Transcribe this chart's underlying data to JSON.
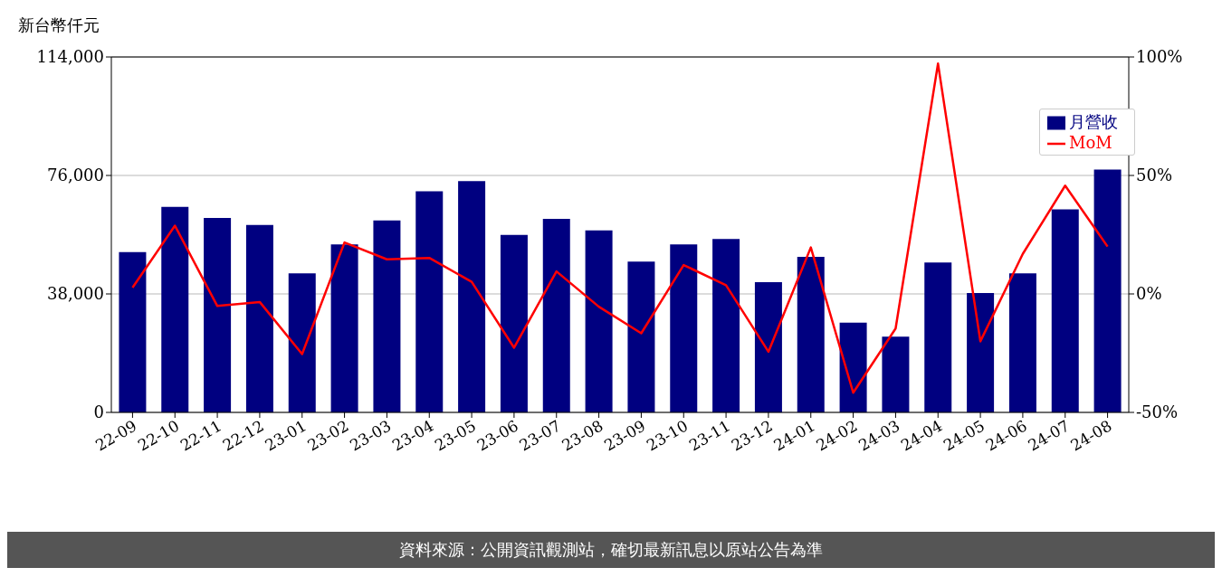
{
  "chart_data": {
    "type": "bar",
    "ylabel": "新台幣仟元",
    "annotations": [
      "資料來源：公開資訊觀測站，確切最新訊息以原站公告為準"
    ],
    "categories": [
      "22-09",
      "22-10",
      "22-11",
      "22-12",
      "23-01",
      "23-02",
      "23-03",
      "23-04",
      "23-05",
      "23-06",
      "23-07",
      "23-08",
      "23-09",
      "23-10",
      "23-11",
      "23-12",
      "24-01",
      "24-02",
      "24-03",
      "24-04",
      "24-05",
      "24-06",
      "24-07",
      "24-08"
    ],
    "series": [
      {
        "name": "月營收",
        "color": "#000080",
        "values": [
          51400,
          65900,
          62400,
          60100,
          44600,
          53900,
          61600,
          70900,
          74200,
          56900,
          62100,
          58400,
          48400,
          53900,
          55600,
          41800,
          49900,
          28800,
          24300,
          48100,
          38300,
          44600,
          65100,
          77900
        ]
      },
      {
        "name": "MoM",
        "type": "line",
        "axis": "y2",
        "color": "#ff0000",
        "values": [
          2.7,
          28.8,
          -5.1,
          -3.4,
          -25.4,
          21.7,
          14.6,
          15.2,
          5.1,
          -22.7,
          9.5,
          -5.4,
          -16.6,
          12.2,
          3.7,
          -24.4,
          19.6,
          -41.7,
          -14.6,
          97.2,
          -20.0,
          16.9,
          45.7,
          20.0
        ]
      }
    ],
    "ylim": [
      0,
      114000
    ],
    "yticks": [
      {
        "value": 0,
        "label": "0"
      },
      {
        "value": 38000,
        "label": "38,000"
      },
      {
        "value": 76000,
        "label": "76,000"
      },
      {
        "value": 114000,
        "label": "114,000"
      }
    ],
    "y2lim": [
      -50,
      100
    ],
    "y2ticks": [
      {
        "value": -50,
        "label": "-50%"
      },
      {
        "value": 0,
        "label": "0%"
      },
      {
        "value": 50,
        "label": "50%"
      },
      {
        "value": 100,
        "label": "100%"
      }
    ],
    "grid": "y",
    "legend": "top right"
  }
}
